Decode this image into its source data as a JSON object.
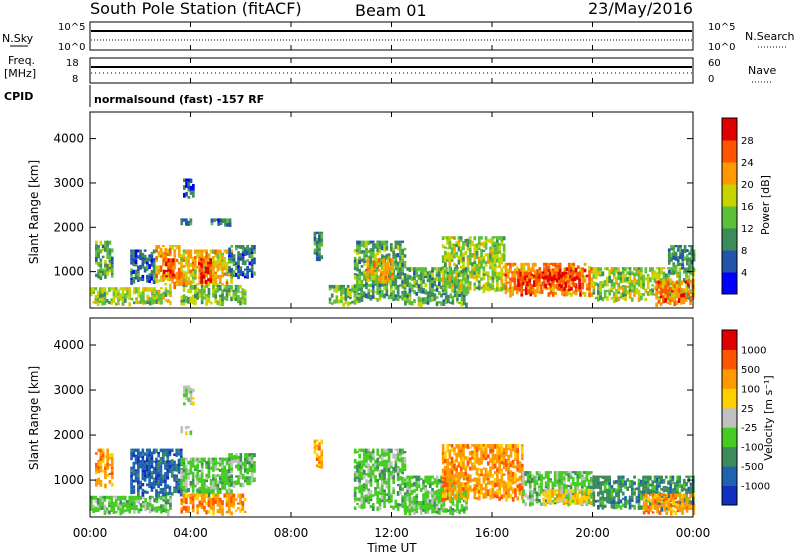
{
  "header": {
    "station": "South Pole Station (fitACF)",
    "beam": "Beam 01",
    "date": "23/May/2016"
  },
  "aux_panels": {
    "nsky_label": "N.Sky",
    "nsearch_label": "N.Search",
    "freq_label_1": "Freq.",
    "freq_label_2": "[MHz]",
    "nave_label": "Nave",
    "cpid_label": "CPID",
    "cpid_text": "normalsound (fast) -157 RF",
    "nsky_ticks": [
      "10^5",
      "10^0"
    ],
    "nsearch_ticks": [
      "10^5",
      "10^0"
    ],
    "freq_ticks": [
      "18",
      "8"
    ],
    "nave_ticks": [
      "60",
      "0"
    ]
  },
  "colors": {
    "power": [
      "#0000ff",
      "#2255aa",
      "#3d8a5a",
      "#5cbf3a",
      "#c8d400",
      "#ff9900",
      "#ff5500",
      "#e00000"
    ],
    "velocity": [
      "#e00000",
      "#ff5500",
      "#ff9900",
      "#ffd000",
      "#c0c0c0",
      "#44cc22",
      "#3d8a5a",
      "#1f63b0",
      "#1030c0"
    ]
  },
  "chart_data": [
    {
      "type": "heatmap",
      "panel": "power",
      "ylabel": "Slant Range [km]",
      "xlabel": "Time UT",
      "x_ticks": [
        "00:00",
        "04:00",
        "08:00",
        "12:00",
        "16:00",
        "20:00",
        "00:00"
      ],
      "ylim": [
        180,
        4600
      ],
      "y_ticks": [
        1000,
        2000,
        3000,
        4000
      ],
      "colorbar": {
        "label": "Power [dB]",
        "ticks": [
          "4",
          "8",
          "12",
          "16",
          "20",
          "24",
          "28"
        ],
        "range": [
          0,
          30
        ]
      },
      "regions": [
        {
          "t0": 0.0,
          "t1": 3.2,
          "r0": 300,
          "r1": 650,
          "level": 16
        },
        {
          "t0": 0.2,
          "t1": 0.9,
          "r0": 900,
          "r1": 1700,
          "level": 12
        },
        {
          "t0": 1.6,
          "t1": 2.5,
          "r0": 800,
          "r1": 1500,
          "level": 8
        },
        {
          "t0": 2.6,
          "t1": 3.6,
          "r0": 700,
          "r1": 1600,
          "level": 22
        },
        {
          "t0": 2.9,
          "t1": 3.3,
          "r0": 900,
          "r1": 1300,
          "level": 26
        },
        {
          "t0": 3.6,
          "t1": 5.6,
          "r0": 700,
          "r1": 1500,
          "level": 20
        },
        {
          "t0": 4.3,
          "t1": 4.8,
          "r0": 800,
          "r1": 1300,
          "level": 28
        },
        {
          "t0": 3.6,
          "t1": 6.2,
          "r0": 300,
          "r1": 700,
          "level": 14
        },
        {
          "t0": 5.5,
          "t1": 6.5,
          "r0": 900,
          "r1": 1600,
          "level": 8
        },
        {
          "t0": 3.7,
          "t1": 4.1,
          "r0": 2700,
          "r1": 3100,
          "level": 6
        },
        {
          "t0": 3.6,
          "t1": 4.0,
          "r0": 2050,
          "r1": 2200,
          "level": 10
        },
        {
          "t0": 4.8,
          "t1": 5.6,
          "r0": 2050,
          "r1": 2200,
          "level": 8
        },
        {
          "t0": 8.9,
          "t1": 9.2,
          "r0": 1300,
          "r1": 1900,
          "level": 10
        },
        {
          "t0": 9.5,
          "t1": 10.8,
          "r0": 300,
          "r1": 700,
          "level": 14
        },
        {
          "t0": 10.5,
          "t1": 12.5,
          "r0": 400,
          "r1": 1700,
          "level": 12
        },
        {
          "t0": 11.0,
          "t1": 12.0,
          "r0": 800,
          "r1": 1300,
          "level": 20
        },
        {
          "t0": 12.5,
          "t1": 15.0,
          "r0": 300,
          "r1": 1100,
          "level": 12
        },
        {
          "t0": 14.0,
          "t1": 16.5,
          "r0": 600,
          "r1": 1800,
          "level": 16
        },
        {
          "t0": 16.5,
          "t1": 20.0,
          "r0": 500,
          "r1": 1200,
          "level": 24
        },
        {
          "t0": 17.0,
          "t1": 19.5,
          "r0": 700,
          "r1": 1000,
          "level": 28
        },
        {
          "t0": 20.0,
          "t1": 24.0,
          "r0": 400,
          "r1": 1100,
          "level": 16
        },
        {
          "t0": 22.5,
          "t1": 24.0,
          "r0": 300,
          "r1": 800,
          "level": 24
        },
        {
          "t0": 23.0,
          "t1": 24.0,
          "r0": 1000,
          "r1": 1600,
          "level": 10
        }
      ]
    },
    {
      "type": "heatmap",
      "panel": "velocity",
      "ylabel": "Slant Range [km]",
      "xlabel": "Time UT",
      "x_ticks": [
        "00:00",
        "04:00",
        "08:00",
        "12:00",
        "16:00",
        "20:00",
        "00:00"
      ],
      "ylim": [
        180,
        4600
      ],
      "y_ticks": [
        1000,
        2000,
        3000,
        4000
      ],
      "colorbar": {
        "label": "Velocity [m s⁻¹]",
        "ticks": [
          "1000",
          "500",
          "100",
          "25",
          "-25",
          "-100",
          "-500",
          "-1000"
        ]
      },
      "regions": [
        {
          "t0": 0.0,
          "t1": 3.2,
          "r0": 300,
          "r1": 650,
          "level": 1
        },
        {
          "t0": 0.2,
          "t1": 0.9,
          "r0": 900,
          "r1": 1700,
          "level": -2
        },
        {
          "t0": 1.6,
          "t1": 3.6,
          "r0": 700,
          "r1": 1700,
          "level": 3
        },
        {
          "t0": 3.6,
          "t1": 5.6,
          "r0": 700,
          "r1": 1500,
          "level": 1
        },
        {
          "t0": 3.6,
          "t1": 6.2,
          "r0": 300,
          "r1": 700,
          "level": -2
        },
        {
          "t0": 5.5,
          "t1": 6.5,
          "r0": 900,
          "r1": 1600,
          "level": 1
        },
        {
          "t0": 3.7,
          "t1": 4.1,
          "r0": 2700,
          "r1": 3100,
          "level": 0
        },
        {
          "t0": 3.6,
          "t1": 4.0,
          "r0": 2050,
          "r1": 2200,
          "level": 0
        },
        {
          "t0": 8.9,
          "t1": 9.2,
          "r0": 1300,
          "r1": 1900,
          "level": -2
        },
        {
          "t0": 10.5,
          "t1": 12.5,
          "r0": 400,
          "r1": 1700,
          "level": 1
        },
        {
          "t0": 12.5,
          "t1": 15.0,
          "r0": 300,
          "r1": 1100,
          "level": 1
        },
        {
          "t0": 14.0,
          "t1": 17.2,
          "r0": 600,
          "r1": 1800,
          "level": -2
        },
        {
          "t0": 17.2,
          "t1": 20.0,
          "r0": 500,
          "r1": 1200,
          "level": 1
        },
        {
          "t0": 18.0,
          "t1": 20.0,
          "r0": 500,
          "r1": 800,
          "level": -1
        },
        {
          "t0": 20.0,
          "t1": 24.0,
          "r0": 400,
          "r1": 1100,
          "level": 2
        },
        {
          "t0": 22.0,
          "t1": 24.0,
          "r0": 300,
          "r1": 700,
          "level": -2
        }
      ]
    }
  ]
}
